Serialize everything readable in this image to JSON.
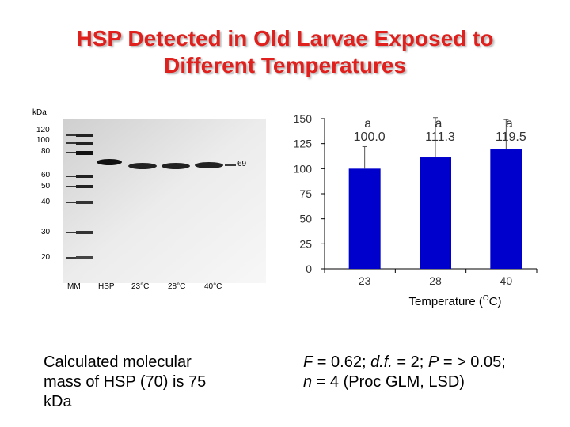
{
  "title": {
    "line1": "HSP Detected in Old Larvae Exposed to",
    "line2": "Different Temperatures"
  },
  "gel": {
    "unit": "kDa",
    "marker_labels": [
      "120",
      "100",
      "80",
      "60",
      "50",
      "40",
      "30",
      "20"
    ],
    "band_label": "69",
    "lanes": [
      "MM",
      "HSP",
      "23°C",
      "28°C",
      "40°C"
    ]
  },
  "left_note": {
    "line1": "Calculated molecular",
    "line2": "mass of HSP (70) is 75",
    "line3": "kDa"
  },
  "stats_note": {
    "F_label": "F",
    "F_value": "= 0.62;",
    "df_label": "d.f.",
    "df_value": "= 2;",
    "P_label": "P",
    "P_value": "=  > 0.05;",
    "n_label": "n",
    "n_value": "= 4 (Proc GLM, LSD)"
  },
  "chart_data": {
    "type": "bar",
    "categories": [
      "23",
      "28",
      "40"
    ],
    "values": [
      100.0,
      111.3,
      119.5
    ],
    "data_labels": [
      "100.0",
      "111.3",
      "119.5"
    ],
    "letters": [
      "a",
      "a",
      "a"
    ],
    "error_upper": [
      122,
      151,
      149
    ],
    "xlabel_text": "Temperature (",
    "xlabel_sup": "O",
    "xlabel_unit": "C)",
    "ylabel": "",
    "ylim": [
      0,
      150
    ],
    "yticks": [
      "0",
      "25",
      "50",
      "75",
      "100",
      "125",
      "150"
    ],
    "bar_color": "#0000cc",
    "grid": false
  }
}
